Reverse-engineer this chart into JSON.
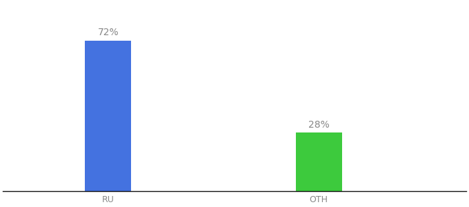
{
  "categories": [
    "RU",
    "OTH"
  ],
  "values": [
    72,
    28
  ],
  "bar_colors": [
    "#4472e0",
    "#3dca3d"
  ],
  "label_texts": [
    "72%",
    "28%"
  ],
  "bar_width": 0.22,
  "background_color": "#ffffff",
  "text_color": "#888888",
  "label_fontsize": 10,
  "tick_fontsize": 9,
  "ylim": [
    0,
    90
  ],
  "figsize": [
    6.8,
    3.0
  ],
  "dpi": 100,
  "spine_color": "#111111",
  "bar_positions": [
    1,
    2
  ],
  "xlim": [
    0.5,
    2.7
  ]
}
